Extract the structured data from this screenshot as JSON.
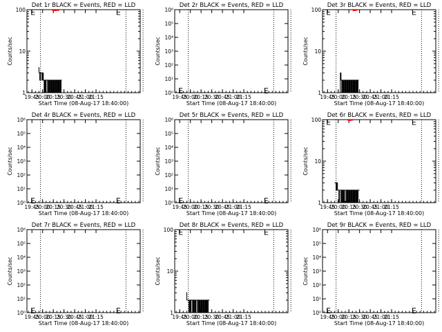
{
  "chart_data": [
    {
      "type": "line",
      "title": "Det 1r BLACK = Events, RED = LLD",
      "xlabel": "Start Time (08-Aug-17 18:40:00)",
      "ylabel": "Counts/sec",
      "yscale": "log",
      "ylim": [
        1,
        100
      ],
      "ytick_labels": [
        "1",
        "10",
        "100"
      ],
      "xlim_min": [
        -2,
        157
      ],
      "xtick_labels": [
        "19:45",
        "20:00",
        "20:15",
        "20:30",
        "20:45",
        "21:00",
        "21:15"
      ],
      "dotted_vlines_min": [
        17,
        137,
        161
      ],
      "annotations": [
        {
          "text": "E",
          "x_min": 3,
          "y": 90
        },
        {
          "text": "E",
          "x_min": 123,
          "y": 90
        }
      ],
      "series": [
        {
          "color": "#000000",
          "x_min": [
            14,
            15,
            16,
            17,
            18,
            19,
            20,
            21,
            22,
            23,
            24,
            25,
            26,
            27,
            28,
            29,
            30,
            31,
            32,
            33,
            34,
            35,
            36,
            37,
            38,
            39,
            40,
            41,
            42,
            43,
            44,
            45,
            46
          ],
          "values": [
            4,
            3,
            2,
            3,
            3,
            2,
            3,
            2,
            1,
            2,
            1,
            2,
            2,
            1,
            2,
            1,
            2,
            1,
            2,
            1,
            2,
            1,
            2,
            1,
            2,
            1,
            2,
            1,
            2,
            1,
            2,
            1,
            2
          ]
        },
        {
          "color": "#ff0000",
          "x_min": [
            33,
            34,
            35,
            36,
            37,
            38,
            39,
            40,
            41,
            42
          ],
          "values": [
            100,
            97,
            100,
            96,
            100,
            95,
            100,
            97,
            100,
            96
          ]
        }
      ]
    },
    {
      "type": "line",
      "title": "Det 2r BLACK = Events, RED = LLD",
      "xlabel": "Start Time (08-Aug-17 18:40:00)",
      "ylabel": "Counts/sec",
      "yscale": "log",
      "ylim": [
        1,
        1000000
      ],
      "ytick_labels": [
        "10⁰",
        "10¹",
        "10²",
        "10³",
        "10⁴",
        "10⁵",
        "10⁶"
      ],
      "xlim_min": [
        -2,
        157
      ],
      "xtick_labels": [
        "19:45",
        "20:00",
        "20:15",
        "20:30",
        "20:45",
        "21:00",
        "21:15"
      ],
      "dotted_vlines_min": [
        17,
        137,
        161
      ],
      "annotations": [
        {
          "text": "E",
          "x_min": 3,
          "y": 1.6
        },
        {
          "text": "E",
          "x_min": 123,
          "y": 1.6
        }
      ],
      "series": []
    },
    {
      "type": "line",
      "title": "Det 3r BLACK = Events, RED = LLD",
      "xlabel": "Start Time (08-Aug-17 18:40:00)",
      "ylabel": "Counts/sec",
      "yscale": "log",
      "ylim": [
        1,
        100
      ],
      "ytick_labels": [
        "1",
        "10",
        "100"
      ],
      "xlim_min": [
        -2,
        157
      ],
      "xtick_labels": [
        "19:45",
        "20:00",
        "20:15",
        "20:30",
        "20:45",
        "21:00",
        "21:15"
      ],
      "dotted_vlines_min": [
        17,
        137,
        161
      ],
      "annotations": [
        {
          "text": "E",
          "x_min": 3,
          "y": 90
        },
        {
          "text": "E",
          "x_min": 123,
          "y": 90
        }
      ],
      "series": [
        {
          "color": "#000000",
          "x_min": [
            22,
            23,
            24,
            25,
            26,
            27,
            28,
            29,
            30,
            31,
            32,
            33,
            34,
            35,
            36,
            37,
            38,
            39,
            40,
            41,
            42,
            43,
            44,
            45,
            46,
            47,
            48
          ],
          "values": [
            1,
            3,
            2,
            1,
            2,
            1,
            2,
            1,
            2,
            1,
            2,
            1,
            2,
            1,
            2,
            1,
            2,
            1,
            2,
            1,
            2,
            1,
            2,
            1,
            2,
            1,
            2
          ]
        },
        {
          "color": "#ff0000",
          "x_min": [
            40,
            41,
            42,
            43,
            44,
            45,
            46
          ],
          "values": [
            100,
            96,
            100,
            95,
            100,
            97,
            100
          ]
        }
      ]
    },
    {
      "type": "line",
      "title": "Det 4r BLACK = Events, RED = LLD",
      "xlabel": "Start Time (08-Aug-17 18:40:00)",
      "ylabel": "Counts/sec",
      "yscale": "log",
      "ylim": [
        1,
        1000000
      ],
      "ytick_labels": [
        "10⁰",
        "10¹",
        "10²",
        "10³",
        "10⁴",
        "10⁵",
        "10⁶"
      ],
      "xlim_min": [
        -2,
        157
      ],
      "xtick_labels": [
        "19:45",
        "20:00",
        "20:15",
        "20:30",
        "20:45",
        "21:00",
        "21:15"
      ],
      "dotted_vlines_min": [
        17,
        137,
        161
      ],
      "annotations": [
        {
          "text": "E",
          "x_min": 3,
          "y": 1.6
        },
        {
          "text": "E",
          "x_min": 123,
          "y": 1.6
        }
      ],
      "series": []
    },
    {
      "type": "line",
      "title": "Det 5r BLACK = Events, RED = LLD",
      "xlabel": "Start Time (08-Aug-17 18:40:00)",
      "ylabel": "Counts/sec",
      "yscale": "log",
      "ylim": [
        1,
        1000000
      ],
      "ytick_labels": [
        "10⁰",
        "10¹",
        "10²",
        "10³",
        "10⁴",
        "10⁵",
        "10⁶"
      ],
      "xlim_min": [
        -2,
        157
      ],
      "xtick_labels": [
        "19:45",
        "20:00",
        "20:15",
        "20:30",
        "20:45",
        "21:00",
        "21:15"
      ],
      "dotted_vlines_min": [
        17,
        137,
        161
      ],
      "annotations": [
        {
          "text": "E",
          "x_min": 3,
          "y": 1.6
        },
        {
          "text": "E",
          "x_min": 123,
          "y": 1.6
        }
      ],
      "series": []
    },
    {
      "type": "line",
      "title": "Det 6r BLACK = Events, RED = LLD",
      "xlabel": "Start Time (08-Aug-17 18:40:00)",
      "ylabel": "Counts/sec",
      "yscale": "log",
      "ylim": [
        1,
        100
      ],
      "ytick_labels": [
        "1",
        "10",
        "100"
      ],
      "xlim_min": [
        -2,
        157
      ],
      "xtick_labels": [
        "19:45",
        "20:00",
        "20:15",
        "20:30",
        "20:45",
        "21:00",
        "21:15"
      ],
      "dotted_vlines_min": [
        17,
        137,
        161
      ],
      "annotations": [
        {
          "text": "E",
          "x_min": 3,
          "y": 90
        },
        {
          "text": "E",
          "x_min": 123,
          "y": 90
        }
      ],
      "series": [
        {
          "color": "#000000",
          "x_min": [
            15,
            16,
            17,
            18,
            19,
            20,
            21,
            22,
            23,
            24,
            25,
            26,
            27,
            28,
            29,
            30,
            31,
            32,
            33,
            34,
            35,
            36,
            37,
            38,
            39,
            40,
            41,
            42,
            43,
            44,
            45,
            46,
            47,
            48,
            49
          ],
          "values": [
            3,
            3,
            2,
            3,
            2,
            2,
            1,
            2,
            2,
            1,
            2,
            1,
            2,
            1,
            2,
            2,
            1,
            2,
            1,
            2,
            1,
            2,
            1,
            2,
            1,
            2,
            1,
            2,
            1,
            2,
            1,
            2,
            1,
            2,
            2
          ]
        },
        {
          "color": "#ff0000",
          "x_min": [
            33,
            34,
            35,
            36,
            37,
            38,
            39,
            40
          ],
          "values": [
            100,
            97,
            100,
            96,
            100,
            97,
            100,
            98
          ]
        }
      ]
    },
    {
      "type": "line",
      "title": "Det 7r BLACK = Events, RED = LLD",
      "xlabel": "Start Time (08-Aug-17 18:40:00)",
      "ylabel": "Counts/sec",
      "yscale": "log",
      "ylim": [
        1,
        1000000
      ],
      "ytick_labels": [
        "10⁰",
        "10¹",
        "10²",
        "10³",
        "10⁴",
        "10⁵",
        "10⁶"
      ],
      "xlim_min": [
        -2,
        157
      ],
      "xtick_labels": [
        "19:45",
        "20:00",
        "20:15",
        "20:30",
        "20:45",
        "21:00",
        "21:15"
      ],
      "dotted_vlines_min": [
        17,
        137,
        161
      ],
      "annotations": [
        {
          "text": "E",
          "x_min": 3,
          "y": 1.6
        },
        {
          "text": "E",
          "x_min": 123,
          "y": 1.6
        }
      ],
      "series": []
    },
    {
      "type": "line",
      "title": "Det 8r BLACK = Events, RED = LLD",
      "xlabel": "Start Time (08-Aug-17 18:40:00)",
      "ylabel": "Counts/sec",
      "yscale": "log",
      "ylim": [
        1,
        100
      ],
      "ytick_labels": [
        "1",
        "10",
        "100"
      ],
      "xlim_min": [
        -2,
        157
      ],
      "xtick_labels": [
        "19:45",
        "20:00",
        "20:15",
        "20:30",
        "20:45",
        "21:00",
        "21:15"
      ],
      "dotted_vlines_min": [
        17,
        137,
        161
      ],
      "annotations": [
        {
          "text": "E",
          "x_min": 3,
          "y": 90
        },
        {
          "text": "E",
          "x_min": 123,
          "y": 90
        }
      ],
      "series": [
        {
          "color": "#000000",
          "x_min": [
            14,
            15,
            16,
            17,
            18,
            19,
            20,
            21,
            22,
            23,
            24,
            25,
            26,
            27,
            28,
            29,
            30,
            31,
            32,
            33,
            34,
            35,
            36,
            37,
            38,
            39,
            40,
            41,
            42,
            43,
            44,
            45,
            46
          ],
          "values": [
            3,
            2,
            2,
            2,
            1,
            2,
            1,
            2,
            2,
            1,
            2,
            1,
            2,
            1,
            2,
            2,
            1,
            2,
            1,
            2,
            1,
            2,
            1,
            2,
            1,
            2,
            1,
            2,
            1,
            2,
            1,
            2,
            2
          ]
        }
      ]
    },
    {
      "type": "line",
      "title": "Det 9r BLACK = Events, RED = LLD",
      "xlabel": "Start Time (08-Aug-17 18:40:00)",
      "ylabel": "Counts/sec",
      "yscale": "log",
      "ylim": [
        1,
        1000000
      ],
      "ytick_labels": [
        "10⁰",
        "10¹",
        "10²",
        "10³",
        "10⁴",
        "10⁵",
        "10⁶"
      ],
      "xlim_min": [
        -2,
        157
      ],
      "xtick_labels": [
        "19:45",
        "20:00",
        "20:15",
        "20:30",
        "20:45",
        "21:00",
        "21:15"
      ],
      "dotted_vlines_min": [
        17,
        137,
        161
      ],
      "annotations": [
        {
          "text": "E",
          "x_min": 3,
          "y": 1.6
        },
        {
          "text": "E",
          "x_min": 123,
          "y": 1.6
        }
      ],
      "series": []
    }
  ]
}
